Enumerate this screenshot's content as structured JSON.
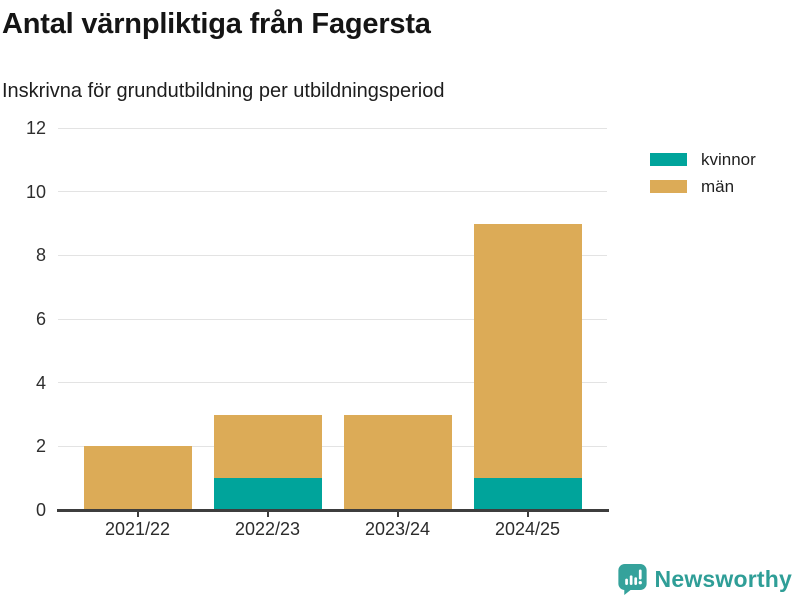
{
  "header": {
    "title": "Antal värnpliktiga från Fagersta",
    "subtitle": "Inskrivna för grundutbildning per utbildningsperiod"
  },
  "chart_data": {
    "type": "bar",
    "stacked": true,
    "title": "Antal värnpliktiga från Fagersta",
    "subtitle": "Inskrivna för grundutbildning per utbildningsperiod",
    "categories": [
      "2021/22",
      "2022/23",
      "2023/24",
      "2024/25"
    ],
    "series": [
      {
        "name": "kvinnor",
        "color": "#00a49b",
        "values": [
          0,
          1,
          0,
          1
        ]
      },
      {
        "name": "män",
        "color": "#dcab57",
        "values": [
          2,
          2,
          3,
          8
        ]
      }
    ],
    "totals": [
      2,
      3,
      3,
      9
    ],
    "xlabel": "",
    "ylabel": "",
    "ylim": [
      0,
      12
    ],
    "yticks": [
      0,
      2,
      4,
      6,
      8,
      10,
      12
    ],
    "grid": true,
    "legend_position": "top-right"
  },
  "footer": {
    "brand": "Newsworthy",
    "icon": "newsworthy-bar-chart-bubble-icon",
    "brand_color": "#2f9e97"
  },
  "colors": {
    "kvinnor": "#00a49b",
    "man": "#dcab57",
    "gridline": "#e3e3e3",
    "axis": "#3d3d3d",
    "background": "#ffffff",
    "brand": "#2f9e97"
  }
}
